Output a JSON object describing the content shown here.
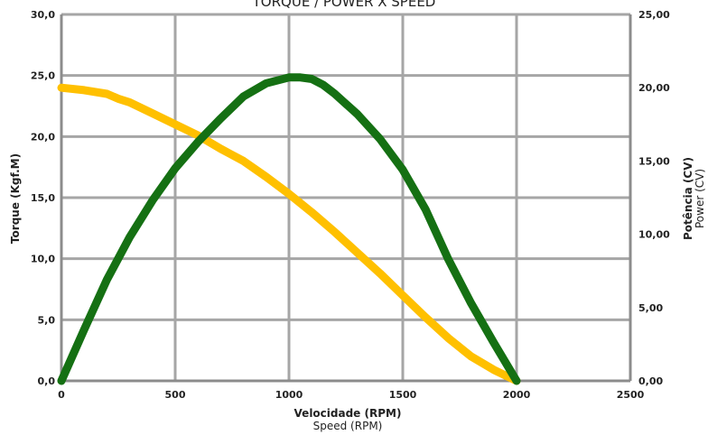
{
  "chart_data": {
    "type": "line",
    "title": "TORQUE / POWER X SPEED",
    "xlabel": "Velocidade (RPM)",
    "xlabel_sub": "Speed (RPM)",
    "ylabel": "Torque (Kgf.M)",
    "y2label": "Potência (CV)",
    "y2label_sub": "Power (CV)",
    "xlim": [
      0,
      2500
    ],
    "ylim": [
      0,
      30
    ],
    "y2lim": [
      0,
      25
    ],
    "x_ticks": [
      "0",
      "500",
      "1000",
      "1500",
      "2000",
      "2500"
    ],
    "y_ticks": [
      "0,0",
      "5,0",
      "10,0",
      "15,0",
      "20,0",
      "25,0",
      "30,0"
    ],
    "y2_ticks": [
      "0,00",
      "5,00",
      "10,00",
      "15,00",
      "20,00",
      "25,00"
    ],
    "grid": true,
    "series": [
      {
        "axis": "left",
        "color": "#FFC000",
        "x": [
          0,
          100,
          200,
          250,
          300,
          400,
          500,
          600,
          700,
          800,
          900,
          1000,
          1100,
          1200,
          1300,
          1400,
          1500,
          1600,
          1700,
          1800,
          1900,
          2000
        ],
        "y": [
          24.0,
          23.8,
          23.5,
          23.1,
          22.8,
          21.9,
          21.0,
          20.1,
          19.0,
          18.0,
          16.7,
          15.3,
          13.8,
          12.2,
          10.5,
          8.8,
          7.0,
          5.2,
          3.5,
          2.0,
          0.9,
          0.0
        ]
      },
      {
        "axis": "right",
        "color": "#157013",
        "x": [
          0,
          100,
          200,
          300,
          400,
          500,
          600,
          700,
          800,
          900,
          1000,
          1050,
          1100,
          1150,
          1200,
          1300,
          1400,
          1500,
          1600,
          1700,
          1800,
          1900,
          2000
        ],
        "y": [
          0.0,
          3.5,
          6.9,
          9.8,
          12.3,
          14.5,
          16.3,
          17.9,
          19.4,
          20.3,
          20.7,
          20.7,
          20.6,
          20.2,
          19.6,
          18.2,
          16.5,
          14.4,
          11.7,
          8.3,
          5.3,
          2.6,
          0.0
        ]
      }
    ]
  }
}
